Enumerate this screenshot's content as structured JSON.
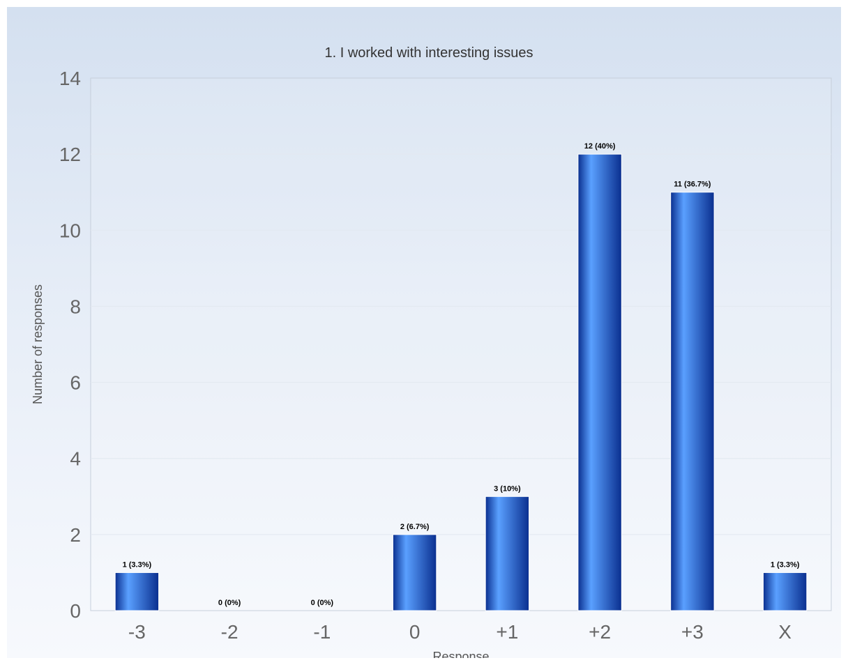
{
  "chart_data": {
    "type": "bar",
    "title": "1. I worked with interesting issues",
    "xlabel": "Response",
    "ylabel": "Number of responses",
    "categories": [
      "-3",
      "-2",
      "-1",
      "0",
      "+1",
      "+2",
      "+3",
      "X"
    ],
    "values": [
      1,
      0,
      0,
      2,
      3,
      12,
      11,
      1
    ],
    "data_labels": [
      "1 (3.3%)",
      "0 (0%)",
      "0 (0%)",
      "2 (6.7%)",
      "3 (10%)",
      "12 (40%)",
      "11 (36.7%)",
      "1 (3.3%)"
    ],
    "ylim": [
      0,
      14
    ],
    "yticks": [
      "0",
      "2",
      "4",
      "6",
      "8",
      "10",
      "12",
      "14"
    ],
    "grid": true,
    "legend": "none",
    "colors": {
      "bar_dark": "#0a2f8f",
      "bar_light": "#5aa0ff",
      "grid": "#e2e8f0",
      "plot_border": "#c6cfdb"
    }
  }
}
